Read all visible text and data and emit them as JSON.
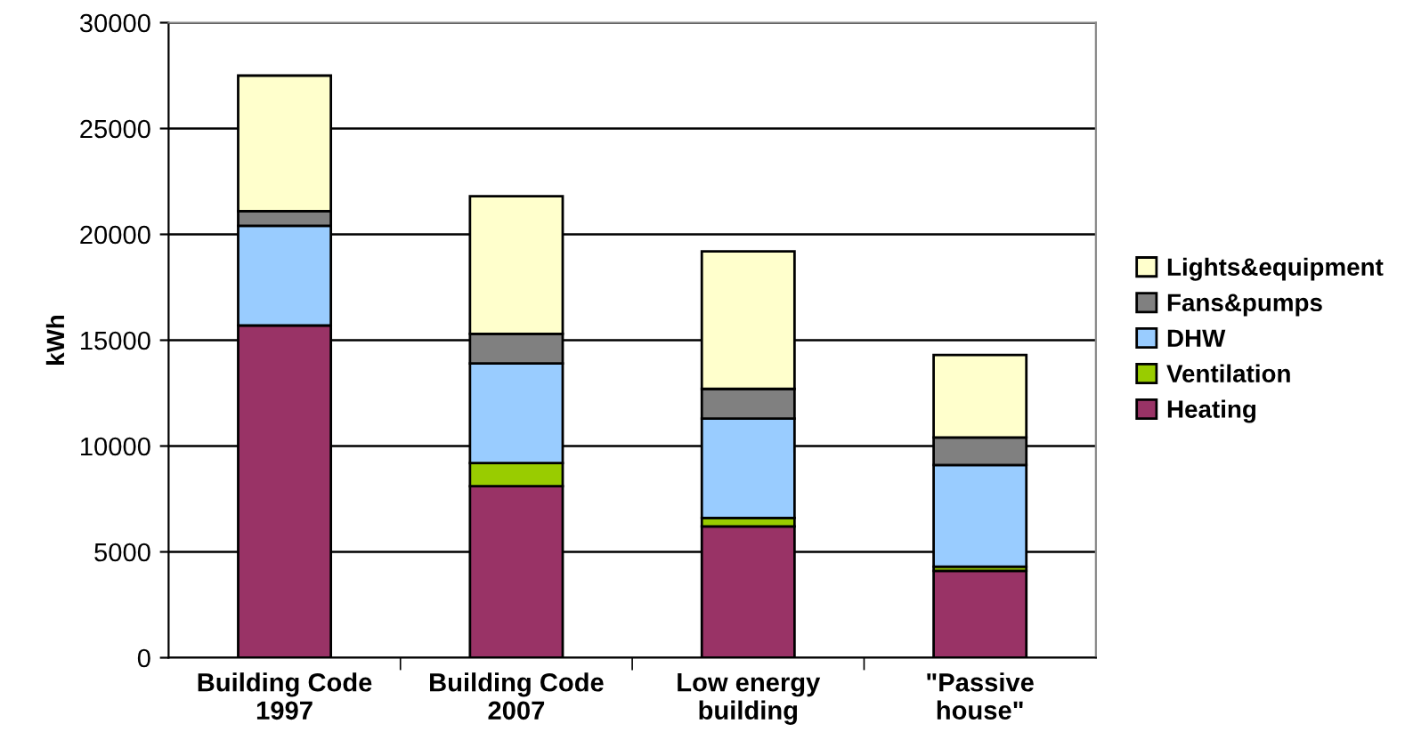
{
  "chart_data": {
    "type": "bar",
    "stacked": true,
    "ylabel": "kWh",
    "categories": [
      "Building Code\n1997",
      "Building Code\n2007",
      "Low energy\nbuilding",
      "\"Passive\nhouse\""
    ],
    "series": [
      {
        "name": "Heating",
        "color": "#993366",
        "values": [
          15700,
          8100,
          6200,
          4100
        ]
      },
      {
        "name": "Ventilation",
        "color": "#99cc00",
        "values": [
          0,
          1100,
          400,
          200
        ]
      },
      {
        "name": "DHW",
        "color": "#99ccff",
        "values": [
          4700,
          4700,
          4700,
          4800
        ]
      },
      {
        "name": "Fans&pumps",
        "color": "#808080",
        "values": [
          700,
          1400,
          1400,
          1300
        ]
      },
      {
        "name": "Lights&equipment",
        "color": "#ffffcc",
        "values": [
          6400,
          6500,
          6500,
          3900
        ]
      }
    ],
    "ylim": [
      0,
      30000
    ],
    "yticks": [
      0,
      5000,
      10000,
      15000,
      20000,
      25000,
      30000
    ],
    "grid": "y",
    "legend": "right"
  }
}
